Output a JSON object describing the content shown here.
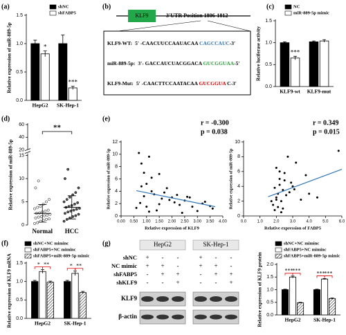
{
  "chart_data": [
    {
      "type": "bar",
      "label": "(a)",
      "ylabel": "Relative expression of miR-889-5p",
      "categories": [
        "HepG2",
        "SK-Hep-1"
      ],
      "series": [
        {
          "name": "shNC",
          "color": "#000000",
          "values": [
            1.0,
            1.0
          ],
          "errors": [
            0.06,
            0.15
          ]
        },
        {
          "name": "shFABP5",
          "color": "#ffffff",
          "values": [
            0.82,
            0.22
          ],
          "errors": [
            0.05,
            0.03
          ]
        }
      ],
      "ylim": [
        0,
        1.5
      ],
      "yticks": [
        {
          "value": 0,
          "label": "0.0"
        },
        {
          "value": 0.5,
          "label": "0.5"
        },
        {
          "value": 1,
          "label": "1.0"
        },
        {
          "value": 1.5,
          "label": "1.5"
        }
      ],
      "annotations": [
        "*",
        "***"
      ],
      "annotation_color": "#000000"
    },
    {
      "type": "bar",
      "label": "(c)",
      "ylabel": "Relative luciferase activity",
      "categories": [
        "KLF9-wt",
        "KLF9-mut"
      ],
      "series": [
        {
          "name": "NC",
          "color": "#000000",
          "values": [
            1.0,
            1.02
          ],
          "errors": [
            0.02,
            0.02
          ]
        },
        {
          "name": "miR-889-5p mimic",
          "color": "#ffffff",
          "values": [
            0.65,
            1.04
          ],
          "errors": [
            0.04,
            0.03
          ]
        }
      ],
      "ylim": [
        0,
        1.5
      ],
      "yticks": [
        {
          "value": 0,
          "label": "0.0"
        },
        {
          "value": 0.5,
          "label": "0.5"
        },
        {
          "value": 1,
          "label": "1.0"
        },
        {
          "value": 1.5,
          "label": "1.5"
        }
      ],
      "annotations": [
        "***"
      ],
      "annotation_color": "#000000"
    },
    {
      "type": "strip",
      "label": "(d)",
      "ylabel": "Relative expression of miR-889-5p",
      "groups": [
        {
          "name": "Normal",
          "values": [
            0.3,
            0.5,
            0.8,
            1.0,
            1.2,
            1.3,
            1.5,
            1.7,
            1.8,
            2.0,
            2.1,
            2.3,
            2.5,
            2.6,
            2.8,
            3.0,
            3.2,
            3.5,
            3.8,
            4.0,
            4.5,
            5.0,
            5.5,
            8.0,
            9.5
          ],
          "mean": 2.5,
          "sd": 1.9
        },
        {
          "name": "HCC",
          "values": [
            0.8,
            1.2,
            1.5,
            1.8,
            2.0,
            2.3,
            2.5,
            2.8,
            3.0,
            3.2,
            3.4,
            3.6,
            3.8,
            4.0,
            4.2,
            4.5,
            4.8,
            5.0,
            5.5,
            6.0,
            6.5,
            7.0,
            8.0,
            10.0,
            12.0
          ],
          "mean": 3.8,
          "sd": 2.5
        }
      ],
      "ylim": [
        0,
        60
      ],
      "axis_break": [
        15,
        20
      ],
      "yticks": [
        0,
        5,
        10,
        15,
        20,
        40,
        60
      ],
      "annotations": [
        "**"
      ],
      "annotation_color": "#e00000"
    },
    {
      "type": "scatter",
      "label": "(e)",
      "xlabel": "Relative expression of KLF9",
      "ylabel": "Relative expression of miR-889-5p",
      "x": [
        0.7,
        0.8,
        0.9,
        1.0,
        1.1,
        1.2,
        0.9,
        1.3,
        1.5,
        1.6,
        1.8,
        2.0,
        2.1,
        2.3,
        2.5,
        2.6,
        2.8,
        3.0,
        3.2,
        3.5,
        3.6,
        0.75,
        1.0,
        1.4,
        1.7,
        1.9,
        2.2,
        1.1,
        0.8,
        1.5,
        2.4,
        3.3,
        1.2,
        0.6,
        2.7
      ],
      "y": [
        10.2,
        8.5,
        7.0,
        5.2,
        9.6,
        4.0,
        3.2,
        3.5,
        6.8,
        2.8,
        4.5,
        3.0,
        2.2,
        1.8,
        2.5,
        3.1,
        1.5,
        0.8,
        2.0,
        1.6,
        1.2,
        2.1,
        1.5,
        0.9,
        3.8,
        2.6,
        3.4,
        0.7,
        4.8,
        1.9,
        0.5,
        2.3,
        6.2,
        1.3,
        3.0
      ],
      "color": "#000000",
      "trendline": {
        "x": [
          0.6,
          3.7
        ],
        "y": [
          4.1,
          1.5
        ],
        "color": "#2e75b6"
      },
      "xlim": [
        0,
        4
      ],
      "xticks": [
        {
          "value": 0,
          "label": "0.00"
        },
        {
          "value": 0.5,
          "label": "0.50"
        },
        {
          "value": 1,
          "label": "1.00"
        },
        {
          "value": 1.5,
          "label": "1.50"
        },
        {
          "value": 2,
          "label": "2.00"
        },
        {
          "value": 2.5,
          "label": "2.50"
        },
        {
          "value": 3,
          "label": "3.00"
        },
        {
          "value": 3.5,
          "label": "3.50"
        },
        {
          "value": 4,
          "label": "4.00"
        }
      ],
      "ylim": [
        0,
        12
      ],
      "yticks": [
        0,
        2,
        4,
        6,
        8,
        10,
        12
      ],
      "annotations": [
        "r = -0.300",
        "p = 0.038"
      ]
    },
    {
      "type": "scatter",
      "xlabel": "Relative expression of FABP5",
      "ylabel": "Relative expression of miR-889-5p",
      "x": [
        1.8,
        2.0,
        2.1,
        2.2,
        1.9,
        2.3,
        2.5,
        2.4,
        2.0,
        2.6,
        2.8,
        3.0,
        3.2,
        3.5,
        2.1,
        2.2,
        1.9,
        2.7,
        2.3,
        4.0,
        4.5,
        5.8,
        2.0,
        2.4,
        2.9,
        3.1,
        1.7,
        2.2,
        2.5,
        3.8
      ],
      "y": [
        1.5,
        2.5,
        3.0,
        4.2,
        0.8,
        2.0,
        5.8,
        3.5,
        6.5,
        2.8,
        3.2,
        4.0,
        7.2,
        2.2,
        1.2,
        5.0,
        3.8,
        8.0,
        0.5,
        3.0,
        2.5,
        8.8,
        2.2,
        1.0,
        4.5,
        3.6,
        2.0,
        6.0,
        4.8,
        5.5
      ],
      "color": "#000000",
      "trendline": {
        "x": [
          1.5,
          6.0
        ],
        "y": [
          2.6,
          6.3
        ],
        "color": "#2e75b6"
      },
      "xlim": [
        0,
        6
      ],
      "xticks": [
        {
          "value": 0,
          "label": "0.0"
        },
        {
          "value": 1,
          "label": "1.0"
        },
        {
          "value": 2,
          "label": "2.0"
        },
        {
          "value": 3,
          "label": "3.0"
        },
        {
          "value": 4,
          "label": "4.0"
        },
        {
          "value": 5,
          "label": "5.0"
        },
        {
          "value": 6,
          "label": "6.0"
        }
      ],
      "ylim": [
        0,
        10
      ],
      "yticks": [
        0,
        2,
        4,
        6,
        8,
        10
      ],
      "annotations": [
        "r = 0.349",
        "p = 0.015"
      ]
    },
    {
      "type": "bar",
      "label": "(f)",
      "ylabel": "Relative expression of KLF9 mRNA",
      "categories": [
        "HepG2",
        "SK-Hep-1"
      ],
      "series": [
        {
          "name": "shNC+NC miminc",
          "color": "#000000",
          "values": [
            1.0,
            1.0
          ],
          "errors": [
            0.03,
            0.03
          ]
        },
        {
          "name": "shFABP5+NC miminc",
          "color": "#ffffff",
          "values": [
            1.27,
            1.22
          ],
          "errors": [
            0.05,
            0.06
          ]
        },
        {
          "name": "shFABP5+miR-889-5p mimic",
          "color": "#ffffff",
          "pattern": "hatch",
          "values": [
            0.98,
            0.7
          ],
          "errors": [
            0.03,
            0.03
          ]
        }
      ],
      "ylim": [
        0,
        1.5
      ],
      "yticks": [
        {
          "value": 0,
          "label": "0.0"
        },
        {
          "value": 0.5,
          "label": "0.5"
        },
        {
          "value": 1,
          "label": "1.0"
        },
        {
          "value": 1.5,
          "label": "1.5"
        }
      ],
      "annotations": [
        "*",
        "**",
        "*",
        "**"
      ],
      "annotation_color": "#e00000"
    },
    {
      "type": "bar",
      "ylabel": "Relative expression of KLF9 protein",
      "categories": [
        "HepG2",
        "SK-Hep-1"
      ],
      "series": [
        {
          "name": "shNC+NC miminc",
          "color": "#000000",
          "values": [
            1.0,
            1.0
          ],
          "errors": [
            0.02,
            0.02
          ]
        },
        {
          "name": "shFABP5+NC miminc",
          "color": "#ffffff",
          "values": [
            1.5,
            1.42
          ],
          "errors": [
            0.04,
            0.02
          ]
        },
        {
          "name": "shFABP5+miR-889-5p mimic",
          "color": "#ffffff",
          "pattern": "hatch",
          "values": [
            0.48,
            0.65
          ],
          "errors": [
            0.02,
            0.02
          ]
        }
      ],
      "ylim": [
        0,
        2
      ],
      "yticks": [
        {
          "value": 0,
          "label": "0.0"
        },
        {
          "value": 0.5,
          "label": "0.5"
        },
        {
          "value": 1,
          "label": "1.0"
        },
        {
          "value": 1.5,
          "label": "1.5"
        },
        {
          "value": 2,
          "label": "2.0"
        }
      ],
      "annotations": [
        "***",
        "***",
        "***",
        "***"
      ],
      "annotation_color": "#e00000"
    }
  ],
  "sequence_diagram": {
    "label": "(b)",
    "gene": "KLF9",
    "utr": "3'UTR Position 1806-1812",
    "rows": [
      {
        "name": "KLF9-WT:",
        "prefix": "5' -CAACUUCCAAUACAA ",
        "highlight": "CAGCCAUC",
        "highlight_color": "#2e75b6",
        "suffix": "-3'"
      },
      {
        "name": "miR-889-5p:",
        "prefix": "3'- GACCAUCUACGGACA ",
        "highlight": "GUCGGUAA",
        "highlight_color": "#2e9e3a",
        "suffix": "-5'"
      },
      {
        "name": "KLF9-Mut:",
        "prefix": "5' -CAACTTCCAATACAA ",
        "highlight": "GUCGGUA",
        "highlight_color": "#e00000",
        "suffix": " C-3'"
      }
    ]
  },
  "western_blot": {
    "label": "(g)",
    "cell_lines": [
      "HepG2",
      "SK-Hep-1"
    ],
    "conditions": [
      {
        "name": "shNC",
        "signs": [
          "+",
          "-",
          "-",
          "+",
          "-",
          "-"
        ]
      },
      {
        "name": "NC mimic",
        "signs": [
          "+",
          "+",
          "-",
          "+",
          "+",
          "-"
        ]
      },
      {
        "name": "shFABP5",
        "signs": [
          "-",
          "+",
          "+",
          "-",
          "+",
          "+"
        ]
      },
      {
        "name": "shKLF9",
        "signs": [
          "-",
          "-",
          "+",
          "-",
          "-",
          "+"
        ]
      }
    ],
    "bands": [
      "KLF9",
      "β-actin"
    ]
  }
}
